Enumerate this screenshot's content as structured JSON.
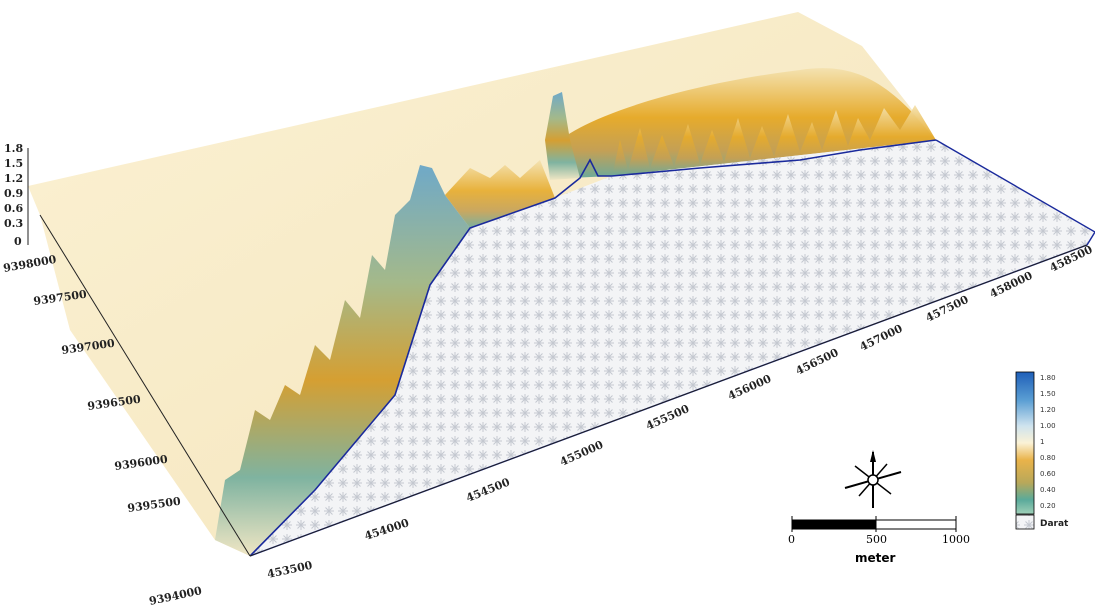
{
  "map": {
    "z_axis_ticks": [
      "1.8",
      "1.5",
      "1.2",
      "0.9",
      "0.6",
      "0.3",
      "0"
    ],
    "y_axis_ticks": [
      "9394000",
      "9395500",
      "9396000",
      "9396500",
      "9397000",
      "9397500",
      "9398000"
    ],
    "x_axis_ticks": [
      "453500",
      "454000",
      "454500",
      "455000",
      "455500",
      "456000",
      "456500",
      "457000",
      "457500",
      "458000",
      "458500"
    ],
    "scale_bar": {
      "labels": [
        "0",
        "500",
        "1000"
      ],
      "unit": "meter"
    },
    "legend": {
      "entries": [
        {
          "label": "1.80",
          "color": "#1f5fb8"
        },
        {
          "label": "1.50",
          "color": "#5b9fd4"
        },
        {
          "label": "1.20",
          "color": "#a9cfe2"
        },
        {
          "label": "1.00",
          "color": "#e8f0ec"
        },
        {
          "label": "1",
          "color": "#fbf2d6"
        },
        {
          "label": "0.80",
          "color": "#e9b34a"
        },
        {
          "label": "0.60",
          "color": "#d89e1c"
        },
        {
          "label": "0.40",
          "color": "#a8b16a"
        },
        {
          "label": "0.20",
          "color": "#5aaa9a"
        },
        {
          "label": "Darat",
          "color": "#eeeeee"
        }
      ]
    },
    "colors": {
      "plateau": "#f8ecc9",
      "sea_grid": "#cfd3db",
      "coastline": "#1a2a9c",
      "deep": "#1f5fb8",
      "shallow": "#d89e1c"
    }
  }
}
